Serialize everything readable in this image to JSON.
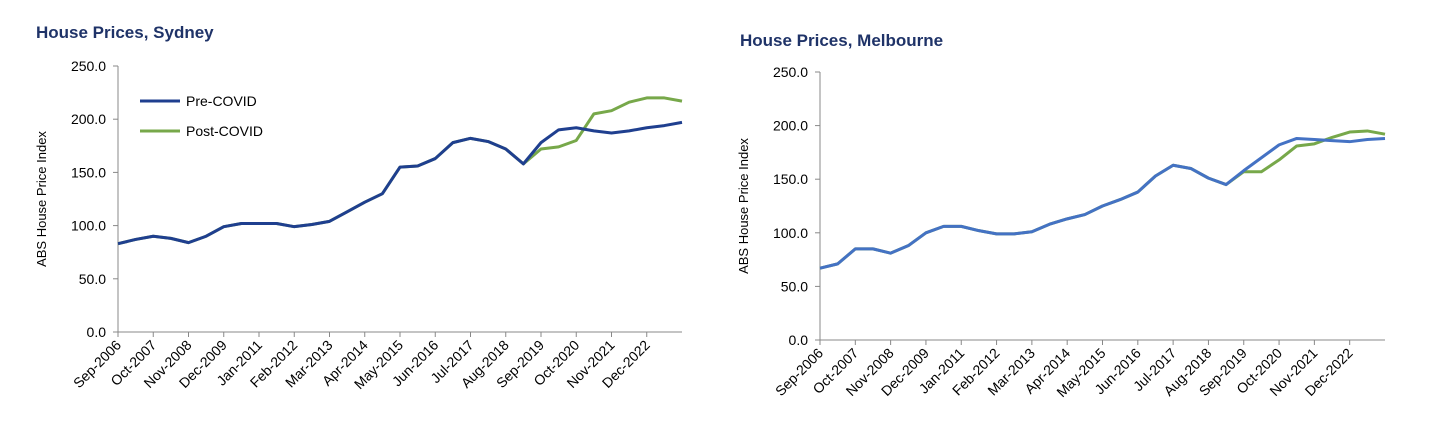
{
  "chart_data": [
    {
      "type": "line",
      "title": "House Prices, Sydney",
      "y_label": "ABS House Price Index",
      "categories": [
        "Sep-2006",
        null,
        "Oct-2007",
        null,
        "Nov-2008",
        null,
        "Dec-2009",
        null,
        "Jan-2011",
        null,
        "Feb-2012",
        null,
        "Mar-2013",
        null,
        "Apr-2014",
        null,
        "May-2015",
        null,
        "Jun-2016",
        null,
        "Jul-2017",
        null,
        "Aug-2018",
        null,
        "Sep-2019",
        null,
        "Oct-2020",
        null,
        "Nov-2021",
        null,
        "Dec-2022",
        null,
        null
      ],
      "ylim": [
        0,
        250
      ],
      "yticks": [
        {
          "value": 0,
          "label": "0.0"
        },
        {
          "value": 50,
          "label": "50.0"
        },
        {
          "value": 100,
          "label": "100.0"
        },
        {
          "value": 150,
          "label": "150.0"
        },
        {
          "value": 200,
          "label": "200.0"
        },
        {
          "value": 250,
          "label": "250.0"
        }
      ],
      "legend": "upper left",
      "series": [
        {
          "name": "Pre-COVID",
          "color": "#1f3f8f",
          "values": [
            83,
            87,
            90,
            88,
            84,
            90,
            99,
            102,
            102,
            102,
            99,
            101,
            104,
            113,
            122,
            130,
            155,
            156,
            163,
            178,
            182,
            179,
            172,
            158,
            178,
            190,
            192,
            189,
            187,
            189,
            192,
            194,
            197
          ]
        },
        {
          "name": "Post-COVID",
          "color": "#77a84a",
          "values": [
            83,
            87,
            90,
            88,
            84,
            90,
            99,
            102,
            102,
            102,
            99,
            101,
            104,
            113,
            122,
            130,
            155,
            156,
            163,
            178,
            182,
            179,
            172,
            158,
            172,
            174,
            180,
            205,
            208,
            216,
            220,
            220,
            217
          ]
        }
      ]
    },
    {
      "type": "line",
      "title": "House Prices, Melbourne",
      "y_label": "ABS House Price Index",
      "categories": [
        "Sep-2006",
        null,
        "Oct-2007",
        null,
        "Nov-2008",
        null,
        "Dec-2009",
        null,
        "Jan-2011",
        null,
        "Feb-2012",
        null,
        "Mar-2013",
        null,
        "Apr-2014",
        null,
        "May-2015",
        null,
        "Jun-2016",
        null,
        "Jul-2017",
        null,
        "Aug-2018",
        null,
        "Sep-2019",
        null,
        "Oct-2020",
        null,
        "Nov-2021",
        null,
        "Dec-2022",
        null,
        null
      ],
      "ylim": [
        0,
        250
      ],
      "yticks": [
        {
          "value": 0,
          "label": "0.0"
        },
        {
          "value": 50,
          "label": "50.0"
        },
        {
          "value": 100,
          "label": "100.0"
        },
        {
          "value": 150,
          "label": "150.0"
        },
        {
          "value": 200,
          "label": "200.0"
        },
        {
          "value": 250,
          "label": "250.0"
        }
      ],
      "series": [
        {
          "name": "Pre-COVID",
          "color": "#4472c4",
          "values": [
            67,
            71,
            85,
            85,
            81,
            88,
            100,
            106,
            106,
            102,
            99,
            99,
            101,
            108,
            113,
            117,
            125,
            131,
            138,
            153,
            163,
            160,
            151,
            145,
            158,
            170,
            182,
            188,
            187,
            186,
            185,
            187,
            188
          ]
        },
        {
          "name": "Post-COVID",
          "color": "#77a84a",
          "values": [
            67,
            71,
            85,
            85,
            81,
            88,
            100,
            106,
            106,
            102,
            99,
            99,
            101,
            108,
            113,
            117,
            125,
            131,
            138,
            153,
            163,
            160,
            151,
            145,
            157,
            157,
            168,
            181,
            183,
            189,
            194,
            195,
            192
          ]
        }
      ]
    }
  ]
}
